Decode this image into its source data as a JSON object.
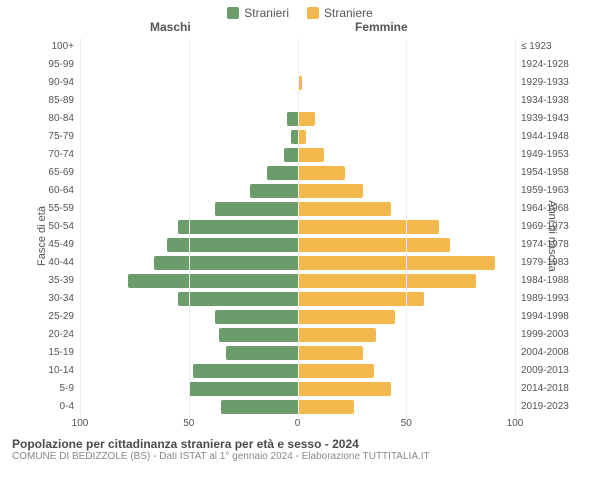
{
  "legend": {
    "male": {
      "label": "Stranieri",
      "color": "#6b9c6b"
    },
    "female": {
      "label": "Straniere",
      "color": "#f2b84b"
    }
  },
  "column_headers": {
    "male": "Maschi",
    "female": "Femmine"
  },
  "axis_titles": {
    "left": "Fasce di età",
    "right": "Anni di nascita"
  },
  "chart": {
    "type": "population-pyramid",
    "x_max": 100,
    "x_ticks": [
      100,
      50,
      0,
      50,
      100
    ],
    "background_color": "#ffffff",
    "grid_color": "#eeeeee",
    "label_fontsize": 10,
    "bar_male_color": "#6b9c6b",
    "bar_female_color": "#f2b84b",
    "rows": [
      {
        "age": "100+",
        "birth": "≤ 1923",
        "m": 0,
        "f": 0
      },
      {
        "age": "95-99",
        "birth": "1924-1928",
        "m": 0,
        "f": 0
      },
      {
        "age": "90-94",
        "birth": "1929-1933",
        "m": 0,
        "f": 2
      },
      {
        "age": "85-89",
        "birth": "1934-1938",
        "m": 0,
        "f": 0
      },
      {
        "age": "80-84",
        "birth": "1939-1943",
        "m": 5,
        "f": 8
      },
      {
        "age": "75-79",
        "birth": "1944-1948",
        "m": 3,
        "f": 4
      },
      {
        "age": "70-74",
        "birth": "1949-1953",
        "m": 6,
        "f": 12
      },
      {
        "age": "65-69",
        "birth": "1954-1958",
        "m": 14,
        "f": 22
      },
      {
        "age": "60-64",
        "birth": "1959-1963",
        "m": 22,
        "f": 30
      },
      {
        "age": "55-59",
        "birth": "1964-1968",
        "m": 38,
        "f": 43
      },
      {
        "age": "50-54",
        "birth": "1969-1973",
        "m": 55,
        "f": 65
      },
      {
        "age": "45-49",
        "birth": "1974-1978",
        "m": 60,
        "f": 70
      },
      {
        "age": "40-44",
        "birth": "1979-1983",
        "m": 66,
        "f": 91
      },
      {
        "age": "35-39",
        "birth": "1984-1988",
        "m": 78,
        "f": 82
      },
      {
        "age": "30-34",
        "birth": "1989-1993",
        "m": 55,
        "f": 58
      },
      {
        "age": "25-29",
        "birth": "1994-1998",
        "m": 38,
        "f": 45
      },
      {
        "age": "20-24",
        "birth": "1999-2003",
        "m": 36,
        "f": 36
      },
      {
        "age": "15-19",
        "birth": "2004-2008",
        "m": 33,
        "f": 30
      },
      {
        "age": "10-14",
        "birth": "2009-2013",
        "m": 48,
        "f": 35
      },
      {
        "age": "5-9",
        "birth": "2014-2018",
        "m": 50,
        "f": 43
      },
      {
        "age": "0-4",
        "birth": "2019-2023",
        "m": 35,
        "f": 26
      }
    ]
  },
  "caption": {
    "title": "Popolazione per cittadinanza straniera per età e sesso - 2024",
    "subtitle": "COMUNE DI BEDIZZOLE (BS) - Dati ISTAT al 1° gennaio 2024 - Elaborazione TUTTITALIA.IT"
  }
}
